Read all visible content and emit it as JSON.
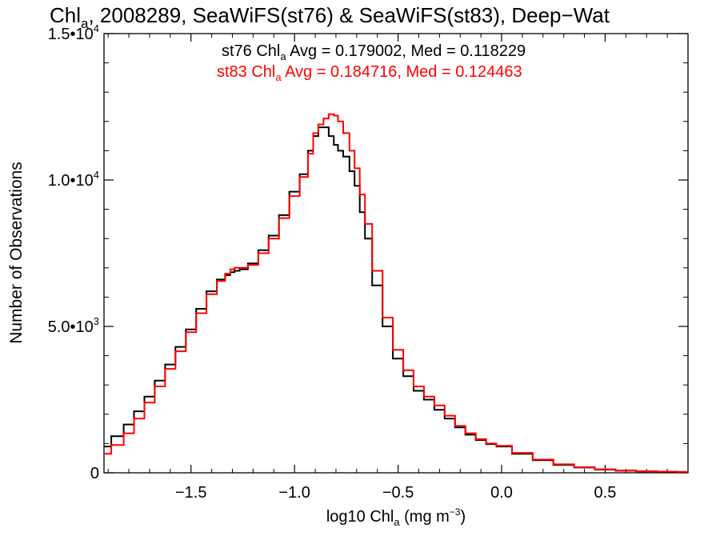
{
  "chart_data": {
    "type": "line",
    "title_parts": {
      "pre": "Chl",
      "sub": "a",
      "post": ", 2008289, SeaWiFS(st76) & SeaWiFS(st83), Deep−Wat"
    },
    "xlabel_parts": {
      "pre": "log10 Chl",
      "sub": "a",
      "mid": " (mg m",
      "sup": "−3",
      "post": ")"
    },
    "ylabel": "Number of Observations",
    "xlim": [
      -1.92,
      0.9
    ],
    "ylim": [
      0,
      15000
    ],
    "x_ticks": [
      {
        "value": -1.5,
        "label": "−1.5"
      },
      {
        "value": -1.0,
        "label": "−1.0"
      },
      {
        "value": -0.5,
        "label": "−0.5"
      },
      {
        "value": 0.0,
        "label": "0.0"
      },
      {
        "value": 0.5,
        "label": "0.5"
      }
    ],
    "y_ticks": [
      {
        "value": 0,
        "base": "0",
        "exp": ""
      },
      {
        "value": 5000,
        "base": "5.0•10",
        "exp": "3"
      },
      {
        "value": 10000,
        "base": "1.0•10",
        "exp": "4"
      },
      {
        "value": 15000,
        "base": "1.5•10",
        "exp": "4"
      }
    ],
    "annotations": [
      {
        "pre": "st76 Chl",
        "sub": "a",
        "post": " Avg = 0.179002, Med = 0.118229",
        "color": "#000000"
      },
      {
        "pre": "st83 Chl",
        "sub": "a",
        "post": " Avg = 0.184716, Med = 0.124463",
        "color": "#ff0000"
      }
    ],
    "series": [
      {
        "color": "#000000",
        "x": [
          -1.92,
          -1.85,
          -1.8,
          -1.75,
          -1.7,
          -1.65,
          -1.6,
          -1.55,
          -1.5,
          -1.45,
          -1.4,
          -1.35,
          -1.32,
          -1.3,
          -1.28,
          -1.25,
          -1.2,
          -1.15,
          -1.1,
          -1.05,
          -1.0,
          -0.95,
          -0.92,
          -0.9,
          -0.87,
          -0.85,
          -0.82,
          -0.8,
          -0.78,
          -0.75,
          -0.72,
          -0.7,
          -0.67,
          -0.65,
          -0.6,
          -0.55,
          -0.5,
          -0.45,
          -0.4,
          -0.35,
          -0.3,
          -0.25,
          -0.2,
          -0.15,
          -0.1,
          -0.05,
          0.0,
          0.1,
          0.2,
          0.3,
          0.4,
          0.5,
          0.6,
          0.7,
          0.8,
          0.9
        ],
        "y": [
          900,
          1250,
          1650,
          2100,
          2600,
          3150,
          3700,
          4300,
          4900,
          5600,
          6200,
          6600,
          6750,
          6850,
          6900,
          6950,
          7150,
          7600,
          8100,
          8800,
          9600,
          10200,
          11000,
          11500,
          11800,
          11800,
          11500,
          11200,
          11000,
          10800,
          10300,
          9800,
          8900,
          8000,
          6400,
          5000,
          3900,
          3300,
          2800,
          2500,
          2150,
          1850,
          1550,
          1300,
          1120,
          980,
          900,
          650,
          430,
          270,
          180,
          110,
          70,
          50,
          40,
          30
        ]
      },
      {
        "color": "#ff0000",
        "x": [
          -1.92,
          -1.85,
          -1.8,
          -1.75,
          -1.7,
          -1.65,
          -1.6,
          -1.55,
          -1.5,
          -1.45,
          -1.4,
          -1.35,
          -1.32,
          -1.3,
          -1.28,
          -1.25,
          -1.2,
          -1.15,
          -1.1,
          -1.05,
          -1.0,
          -0.95,
          -0.92,
          -0.9,
          -0.87,
          -0.85,
          -0.82,
          -0.8,
          -0.78,
          -0.75,
          -0.72,
          -0.7,
          -0.67,
          -0.65,
          -0.6,
          -0.55,
          -0.5,
          -0.45,
          -0.4,
          -0.35,
          -0.3,
          -0.25,
          -0.2,
          -0.15,
          -0.1,
          -0.05,
          0.0,
          0.1,
          0.2,
          0.3,
          0.4,
          0.5,
          0.6,
          0.7,
          0.8,
          0.9
        ],
        "y": [
          650,
          950,
          1350,
          1850,
          2400,
          2950,
          3550,
          4150,
          4800,
          5450,
          6100,
          6550,
          6800,
          6950,
          7000,
          7000,
          7100,
          7500,
          8000,
          8700,
          9450,
          10100,
          10900,
          11600,
          11900,
          12100,
          12250,
          12200,
          12000,
          11600,
          11000,
          10400,
          9500,
          8500,
          6900,
          5300,
          4200,
          3500,
          2950,
          2600,
          2300,
          1950,
          1600,
          1350,
          1150,
          1000,
          920,
          680,
          450,
          290,
          190,
          120,
          80,
          55,
          40,
          30
        ]
      }
    ]
  }
}
